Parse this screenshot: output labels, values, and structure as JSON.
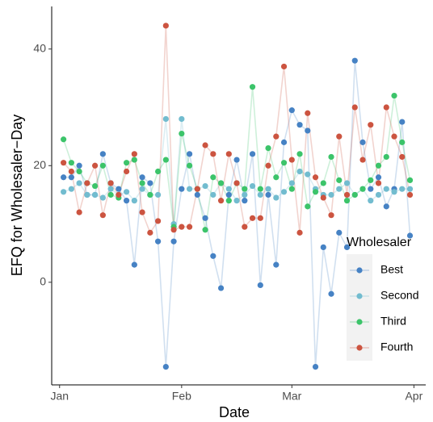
{
  "chart_data": {
    "type": "line",
    "x_label": "Date",
    "y_label": "EFQ for Wholesaler−Day",
    "legend_title": "Wholesaler",
    "legend_position": "bottom-right",
    "x": [
      1,
      3,
      5,
      7,
      9,
      11,
      13,
      15,
      17,
      19,
      21,
      23,
      25,
      27,
      29,
      31,
      33,
      35,
      37,
      39,
      41,
      43,
      45,
      47,
      49,
      51,
      53,
      55,
      57,
      59,
      61,
      63,
      65,
      67,
      69,
      71,
      73,
      75,
      77,
      79,
      81,
      83,
      85,
      87,
      89
    ],
    "xlim": [
      -2,
      93
    ],
    "xticks": [
      {
        "value": 0,
        "label": "Jan"
      },
      {
        "value": 31,
        "label": "Feb"
      },
      {
        "value": 59,
        "label": "Mar"
      },
      {
        "value": 90,
        "label": "Apr"
      }
    ],
    "ylim": [
      -17.6,
      47.3
    ],
    "yticks": [
      0,
      20,
      40
    ],
    "series": [
      {
        "name": "Best",
        "color": "#4682c4",
        "values": [
          18,
          18,
          20,
          15,
          15,
          22,
          17,
          16,
          14,
          3,
          18,
          17,
          7,
          -14.5,
          7,
          16,
          22,
          15,
          11,
          4.5,
          -1,
          15,
          21,
          14,
          22,
          -0.5,
          15,
          3,
          24,
          29.5,
          27,
          26,
          -14.5,
          6,
          -2,
          8.5,
          6,
          38,
          24,
          16,
          18,
          13,
          16,
          27.5,
          8
        ]
      },
      {
        "name": "Second",
        "color": "#72bccf",
        "values": [
          15.5,
          16,
          17,
          15,
          15,
          14.5,
          16,
          15,
          15.5,
          14,
          16,
          15,
          15,
          28,
          10,
          28,
          16,
          16,
          16.5,
          15,
          17,
          16,
          14,
          15,
          16.5,
          15,
          16,
          14.5,
          15.5,
          17,
          19,
          18.5,
          16,
          15,
          15,
          16,
          17,
          15,
          16,
          14,
          15,
          16,
          15.5,
          16,
          16
        ]
      },
      {
        "name": "Third",
        "color": "#3cc46a",
        "values": [
          24.5,
          20.5,
          19,
          17,
          16.5,
          20,
          15,
          14.5,
          20.5,
          21,
          17,
          15,
          19,
          21,
          9.5,
          25.5,
          20,
          16,
          9,
          18,
          17,
          14,
          17,
          16,
          33.5,
          16,
          23,
          18,
          20.5,
          16,
          22,
          13,
          15.5,
          17,
          21.5,
          17.5,
          14,
          15,
          16,
          17.5,
          20,
          21.5,
          32,
          24,
          17.5
        ]
      },
      {
        "name": "Fourth",
        "color": "#cc5440",
        "values": [
          20.5,
          19,
          12,
          17,
          20,
          11.5,
          17,
          15,
          19,
          22,
          12,
          8.5,
          10.5,
          44,
          9,
          9.5,
          9.5,
          16,
          23.5,
          22,
          14,
          22,
          17,
          9.5,
          11,
          11,
          20,
          25,
          37,
          21,
          8.5,
          29,
          18,
          14.5,
          11.5,
          25,
          15,
          30,
          21,
          27,
          17,
          30,
          25,
          21.5,
          15
        ]
      }
    ]
  }
}
